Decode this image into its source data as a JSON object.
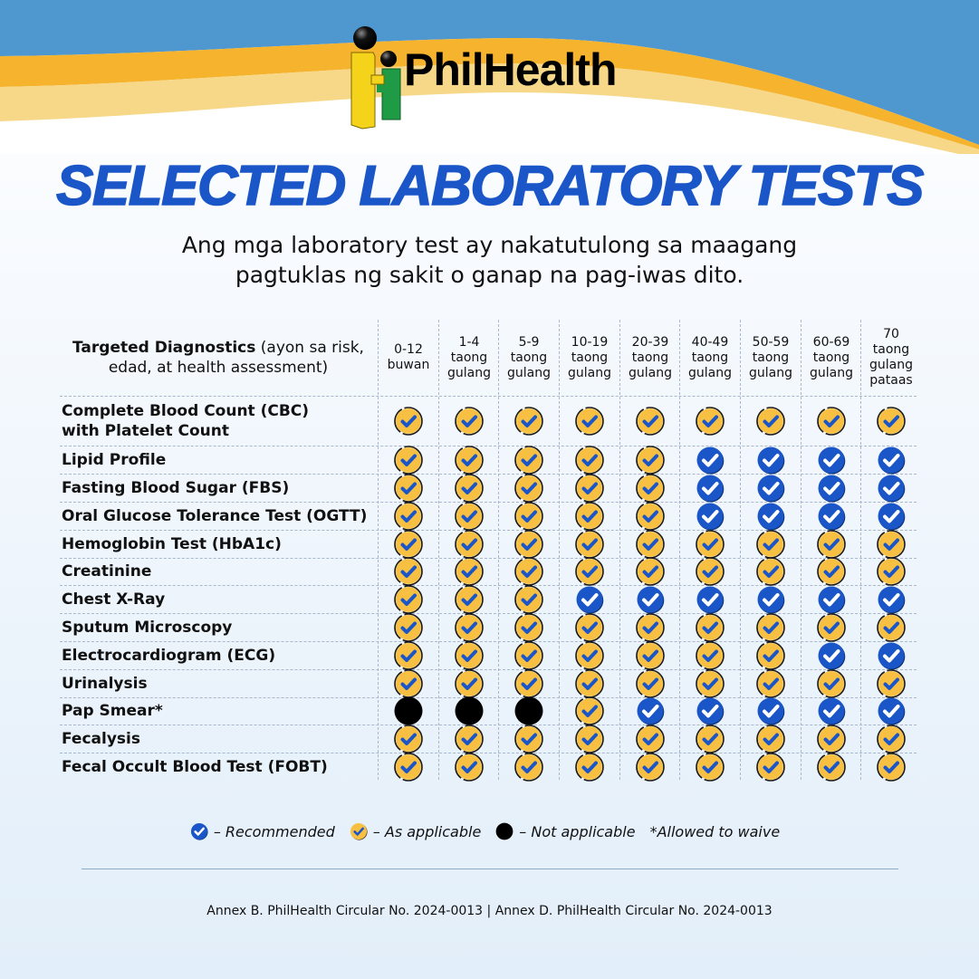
{
  "brand": {
    "name": "PhilHealth",
    "colors": {
      "sky_blue": "#4f97cf",
      "orange_wave": "#f5b32e",
      "light_wave": "#f7d889",
      "title_blue": "#1a56c8",
      "check_blue": "#1a56c8",
      "check_yellow": "#f8c043",
      "not_applicable": "#000000"
    }
  },
  "title": "SELECTED LABORATORY TESTS",
  "subtitle": {
    "line1": "Ang mga laboratory test ay nakatutulong sa maagang",
    "line2": "pagtuklas ng sakit o ganap na pag-iwas dito."
  },
  "table": {
    "header_label_bold": "Targeted Diagnostics",
    "header_label_rest_line1": " (ayon sa risk,",
    "header_label_rest_line2": "edad, at health assessment)",
    "columns": [
      {
        "line1": "0-12",
        "line2": "buwan",
        "line3": "",
        "line4": ""
      },
      {
        "line1": "1-4",
        "line2": "taong",
        "line3": "gulang",
        "line4": ""
      },
      {
        "line1": "5-9",
        "line2": "taong",
        "line3": "gulang",
        "line4": ""
      },
      {
        "line1": "10-19",
        "line2": "taong",
        "line3": "gulang",
        "line4": ""
      },
      {
        "line1": "20-39",
        "line2": "taong",
        "line3": "gulang",
        "line4": ""
      },
      {
        "line1": "40-49",
        "line2": "taong",
        "line3": "gulang",
        "line4": ""
      },
      {
        "line1": "50-59",
        "line2": "taong",
        "line3": "gulang",
        "line4": ""
      },
      {
        "line1": "60-69",
        "line2": "taong",
        "line3": "gulang",
        "line4": ""
      },
      {
        "line1": "70",
        "line2": "taong",
        "line3": "gulang",
        "line4": "pataas"
      }
    ],
    "rows": [
      {
        "label_line1": "Complete Blood Count (CBC)",
        "label_line2": "with Platelet Count",
        "cells": [
          "A",
          "A",
          "A",
          "A",
          "A",
          "A",
          "A",
          "A",
          "A"
        ]
      },
      {
        "label_line1": "Lipid Profile",
        "label_line2": "",
        "cells": [
          "A",
          "A",
          "A",
          "A",
          "A",
          "R",
          "R",
          "R",
          "R"
        ]
      },
      {
        "label_line1": "Fasting Blood Sugar (FBS)",
        "label_line2": "",
        "cells": [
          "A",
          "A",
          "A",
          "A",
          "A",
          "R",
          "R",
          "R",
          "R"
        ]
      },
      {
        "label_line1": "Oral Glucose Tolerance Test (OGTT)",
        "label_line2": "",
        "cells": [
          "A",
          "A",
          "A",
          "A",
          "A",
          "R",
          "R",
          "R",
          "R"
        ]
      },
      {
        "label_line1": "Hemoglobin Test (HbA1c)",
        "label_line2": "",
        "cells": [
          "A",
          "A",
          "A",
          "A",
          "A",
          "A",
          "A",
          "A",
          "A"
        ]
      },
      {
        "label_line1": "Creatinine",
        "label_line2": "",
        "cells": [
          "A",
          "A",
          "A",
          "A",
          "A",
          "A",
          "A",
          "A",
          "A"
        ]
      },
      {
        "label_line1": "Chest X-Ray",
        "label_line2": "",
        "cells": [
          "A",
          "A",
          "A",
          "R",
          "R",
          "R",
          "R",
          "R",
          "R"
        ]
      },
      {
        "label_line1": "Sputum Microscopy",
        "label_line2": "",
        "cells": [
          "A",
          "A",
          "A",
          "A",
          "A",
          "A",
          "A",
          "A",
          "A"
        ]
      },
      {
        "label_line1": "Electrocardiogram (ECG)",
        "label_line2": "",
        "cells": [
          "A",
          "A",
          "A",
          "A",
          "A",
          "A",
          "A",
          "R",
          "R"
        ]
      },
      {
        "label_line1": "Urinalysis",
        "label_line2": "",
        "cells": [
          "A",
          "A",
          "A",
          "A",
          "A",
          "A",
          "A",
          "A",
          "A"
        ]
      },
      {
        "label_line1": "Pap Smear*",
        "label_line2": "",
        "cells": [
          "N",
          "N",
          "N",
          "A",
          "R",
          "R",
          "R",
          "R",
          "R"
        ]
      },
      {
        "label_line1": "Fecalysis",
        "label_line2": "",
        "cells": [
          "A",
          "A",
          "A",
          "A",
          "A",
          "A",
          "A",
          "A",
          "A"
        ]
      },
      {
        "label_line1": "Fecal Occult Blood Test (FOBT)",
        "label_line2": "",
        "cells": [
          "A",
          "A",
          "A",
          "A",
          "A",
          "A",
          "A",
          "A",
          "A"
        ]
      }
    ],
    "cell_key": {
      "R": "recommended",
      "A": "as-applicable",
      "N": "not-applicable"
    }
  },
  "legend": {
    "recommended": "– Recommended",
    "as_applicable": "– As applicable",
    "not_applicable": "– Not applicable",
    "waive_note": "*Allowed to waive"
  },
  "footer": "Annex B. PhilHealth Circular No. 2024-0013 | Annex D. PhilHealth Circular No. 2024-0013"
}
